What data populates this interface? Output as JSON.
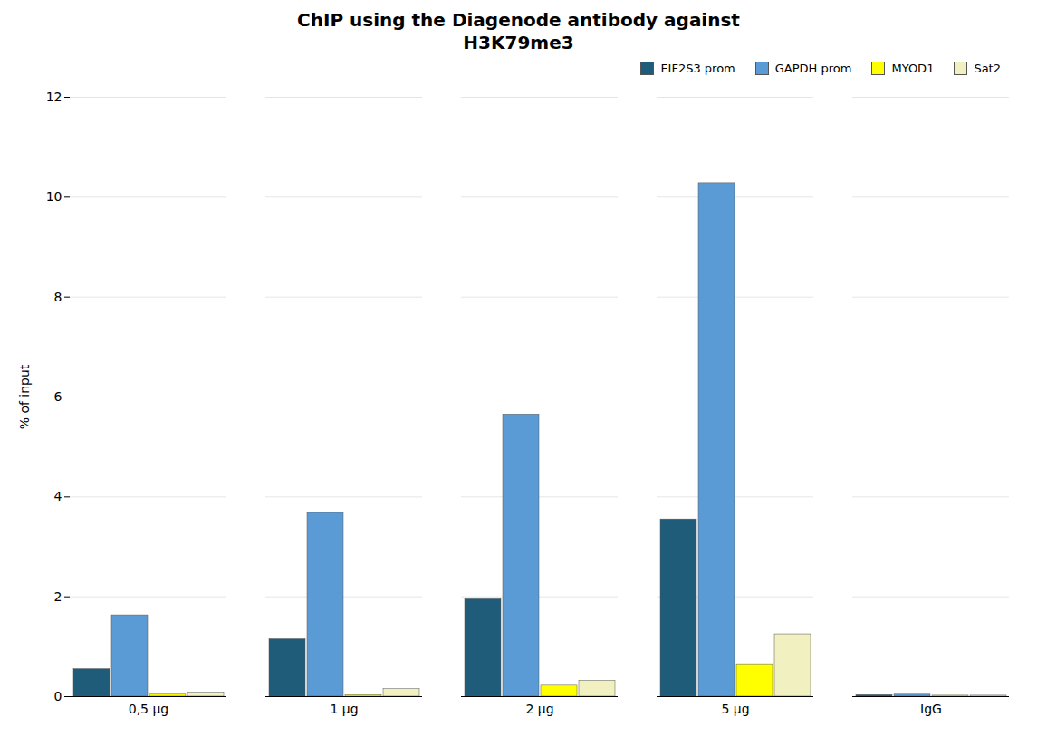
{
  "chart_data": {
    "type": "bar",
    "title": "ChIP using the Diagenode antibody against\nH3K79me3",
    "ylabel": "% of input",
    "categories": [
      "0,5 μg",
      "1 μg",
      "2 μg",
      "5 μg",
      "IgG"
    ],
    "series": [
      {
        "name": "EIF2S3 prom",
        "color": "#1f5c7a",
        "values": [
          0.55,
          1.15,
          1.95,
          3.55,
          0.03
        ]
      },
      {
        "name": "GAPDH prom",
        "color": "#5b9bd5",
        "values": [
          1.63,
          3.68,
          5.65,
          10.28,
          0.04
        ]
      },
      {
        "name": "MYOD1",
        "color": "#ffff00",
        "values": [
          0.04,
          0.03,
          0.22,
          0.65,
          0.02
        ]
      },
      {
        "name": "Sat2",
        "color": "#f0f0c0",
        "values": [
          0.08,
          0.15,
          0.32,
          1.25,
          0.02
        ]
      }
    ],
    "ylim": [
      0,
      12
    ],
    "yticks": [
      0,
      2,
      4,
      6,
      8,
      10,
      12
    ],
    "grid": true,
    "legend": "upper right"
  }
}
